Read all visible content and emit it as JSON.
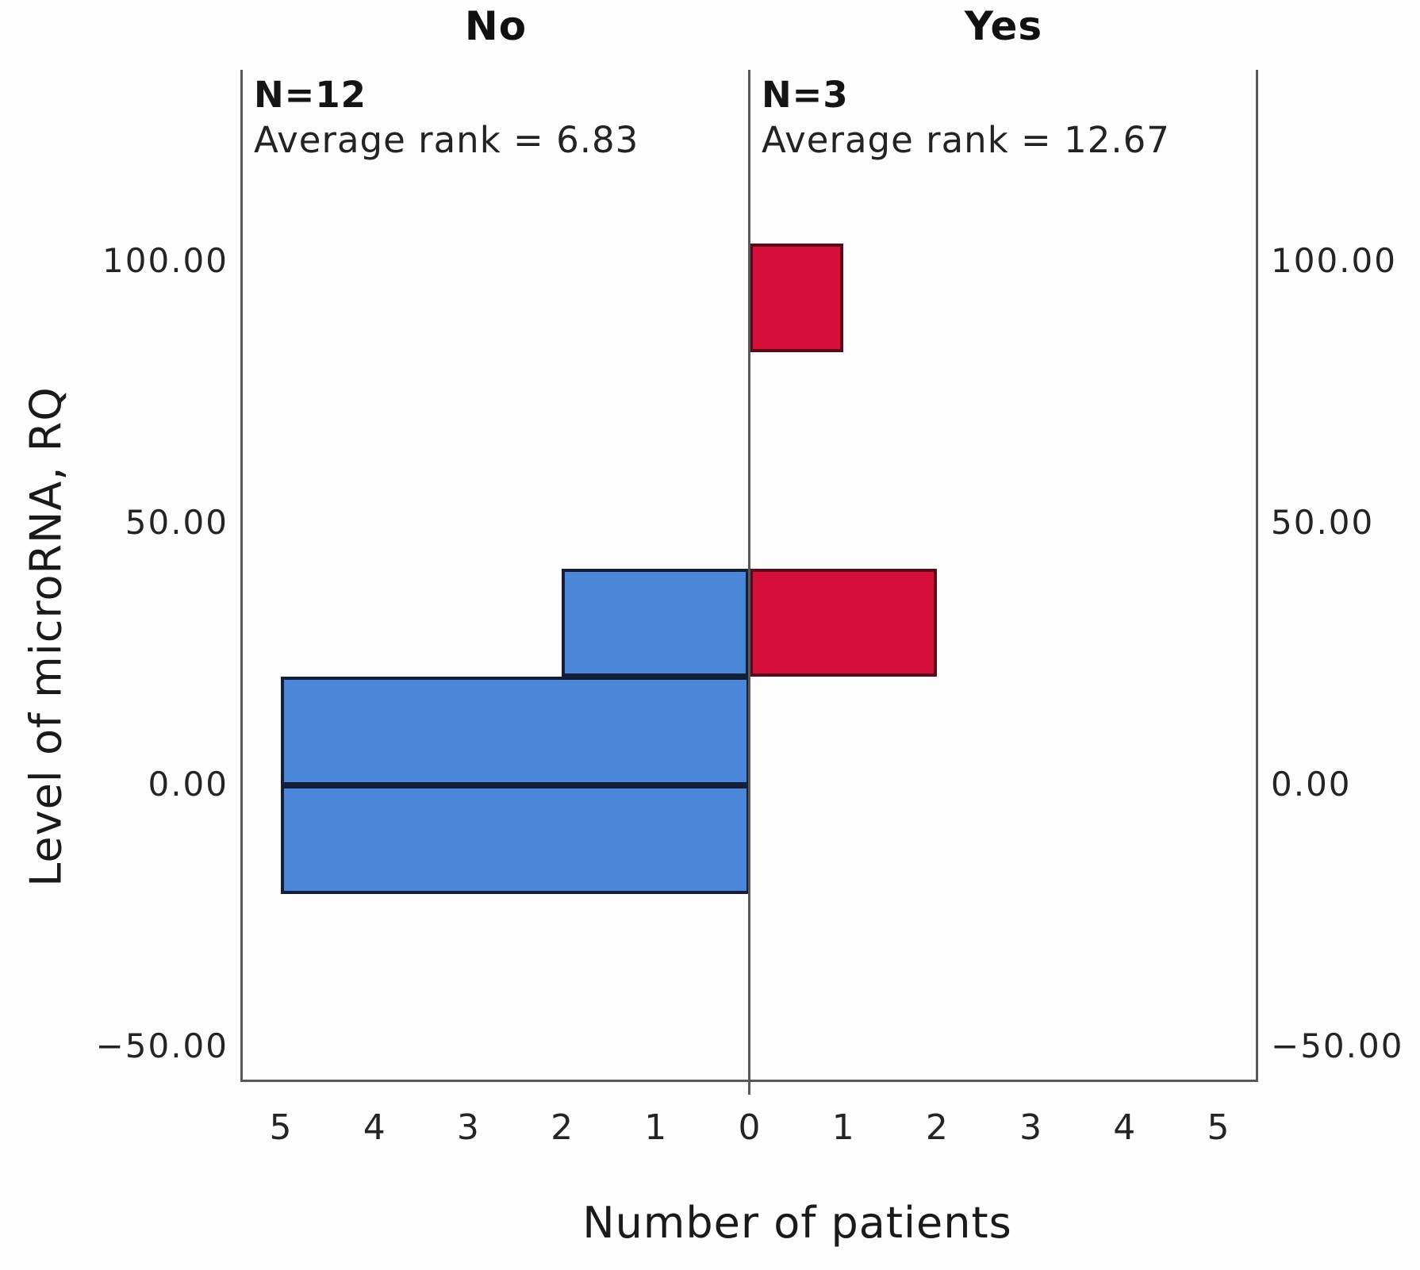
{
  "figure": {
    "panel_titles": {
      "left": "No",
      "right": "Yes"
    },
    "annotations": {
      "left": {
        "n": "N=12",
        "avg": "Average rank = 6.83"
      },
      "right": {
        "n": "N=3",
        "avg": "Average rank = 12.67"
      }
    },
    "y_axis_label": "Level of microRNA, RQ",
    "x_axis_label": "Number of patients"
  },
  "chart_data": {
    "type": "bar",
    "variant": "back_to_back_histogram",
    "title": "",
    "xlabel": "Number of patients",
    "ylabel": "Level of microRNA, RQ",
    "grid": false,
    "legend": "none",
    "ylim": [
      -56,
      137
    ],
    "xlim_per_panel": [
      0,
      5.4
    ],
    "bin_width": 20.7,
    "y_ticks": [
      {
        "value": 100,
        "label": "100.00"
      },
      {
        "value": 50,
        "label": "50.00"
      },
      {
        "value": 0,
        "label": "0.00"
      },
      {
        "value": -50,
        "label": "−50.00"
      }
    ],
    "x_ticks": [
      0,
      1,
      2,
      3,
      4,
      5
    ],
    "panels": [
      {
        "name": "No",
        "side": "left",
        "n": 12,
        "average_rank": 6.83,
        "fill_color": "#4C86D8",
        "border_color": "#131F38",
        "bins": [
          {
            "range": [
              -20.7,
              0
            ],
            "count": 5
          },
          {
            "range": [
              0,
              20.7
            ],
            "count": 5
          },
          {
            "range": [
              20.7,
              41.4
            ],
            "count": 2
          }
        ]
      },
      {
        "name": "Yes",
        "side": "right",
        "n": 3,
        "average_rank": 12.67,
        "fill_color": "#D50F38",
        "border_color": "#5A0A1B",
        "bins": [
          {
            "range": [
              20.7,
              41.4
            ],
            "count": 2
          },
          {
            "range": [
              82.8,
              103.5
            ],
            "count": 1
          }
        ]
      }
    ],
    "colors": {
      "axis": "#58585a",
      "text": "#1c1c1c",
      "background": "#ffffff"
    }
  }
}
